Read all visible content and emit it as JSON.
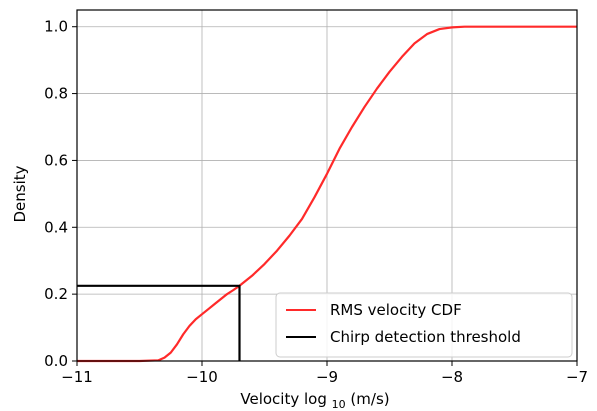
{
  "chart_data": {
    "type": "line",
    "title": "",
    "xlabel": "Velocity log",
    "xlabel_subscript": "10",
    "xlabel_unit": " (m/s)",
    "ylabel": "Density",
    "xlim": [
      -11,
      -7
    ],
    "ylim": [
      0.0,
      1.05
    ],
    "xticks": [
      -11,
      -10,
      -9,
      -8,
      -7
    ],
    "xtick_labels": [
      "−11",
      "−10",
      "−9",
      "−8",
      "−7"
    ],
    "yticks": [
      0.0,
      0.2,
      0.4,
      0.6,
      0.8,
      1.0
    ],
    "ytick_labels": [
      "0.0",
      "0.2",
      "0.4",
      "0.6",
      "0.8",
      "1.0"
    ],
    "grid": true,
    "legend_position": "bottom-right",
    "series": [
      {
        "name": "RMS velocity CDF",
        "color": "#ff2a2a",
        "x": [
          -11.0,
          -10.5,
          -10.35,
          -10.3,
          -10.25,
          -10.2,
          -10.15,
          -10.1,
          -10.05,
          -10.0,
          -9.95,
          -9.9,
          -9.85,
          -9.8,
          -9.75,
          -9.7,
          -9.6,
          -9.5,
          -9.4,
          -9.3,
          -9.2,
          -9.1,
          -9.0,
          -8.9,
          -8.8,
          -8.7,
          -8.6,
          -8.5,
          -8.4,
          -8.3,
          -8.2,
          -8.1,
          -8.0,
          -7.9,
          -7.8,
          -7.0
        ],
        "y": [
          0.0,
          0.0,
          0.002,
          0.01,
          0.025,
          0.05,
          0.08,
          0.105,
          0.125,
          0.14,
          0.155,
          0.17,
          0.185,
          0.2,
          0.212,
          0.225,
          0.255,
          0.29,
          0.33,
          0.375,
          0.425,
          0.49,
          0.56,
          0.635,
          0.7,
          0.76,
          0.815,
          0.865,
          0.91,
          0.95,
          0.978,
          0.993,
          0.998,
          1.0,
          1.0,
          1.0
        ]
      },
      {
        "name": "Chirp detection threshold",
        "color": "#000000",
        "x": [
          -11.0,
          -9.7,
          -9.7
        ],
        "y": [
          0.225,
          0.225,
          0.0
        ]
      }
    ]
  }
}
